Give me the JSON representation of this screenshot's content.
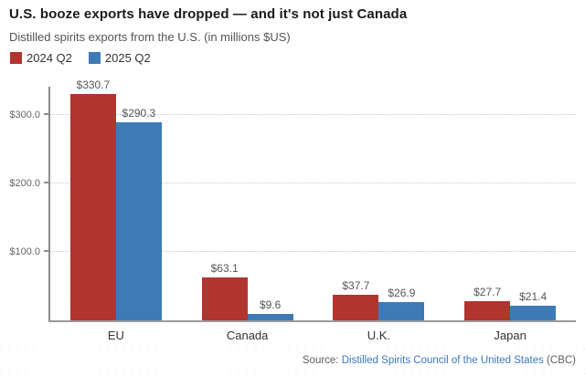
{
  "header": {
    "title": "U.S. booze exports have dropped — and it's not just Canada",
    "subtitle": "Distilled spirits exports from the U.S. (in millions $US)"
  },
  "legend": [
    {
      "label": "2024 Q2",
      "color": "#b1342f"
    },
    {
      "label": "2025 Q2",
      "color": "#3e7bb6"
    }
  ],
  "chart_data": {
    "type": "bar",
    "title": "U.S. booze exports have dropped — and it's not just Canada",
    "subtitle": "Distilled spirits exports from the U.S. (in millions $US)",
    "categories": [
      "EU",
      "Canada",
      "U.K.",
      "Japan"
    ],
    "series": [
      {
        "name": "2024 Q2",
        "color": "#b1342f",
        "values": [
          330.7,
          63.1,
          37.7,
          27.7
        ]
      },
      {
        "name": "2025 Q2",
        "color": "#3e7bb6",
        "values": [
          290.3,
          9.6,
          26.9,
          21.4
        ]
      }
    ],
    "value_labels": [
      [
        "$330.7",
        "$63.1",
        "$37.7",
        "$27.7"
      ],
      [
        "$290.3",
        "$9.6",
        "$26.9",
        "$21.4"
      ]
    ],
    "xlabel": "",
    "ylabel": "millions $US",
    "ylim": [
      0,
      342
    ],
    "y_ticks": [
      {
        "value": 100,
        "label": "$100.0"
      },
      {
        "value": 200,
        "label": "$200.0"
      },
      {
        "value": 300,
        "label": "$300.0"
      }
    ],
    "grid": "horizontal-dotted",
    "legend_position": "top-left"
  },
  "footer": {
    "source_prefix": "Source: ",
    "source_link": "Distilled Spirits Council of the United States",
    "source_suffix": " (CBC)"
  }
}
